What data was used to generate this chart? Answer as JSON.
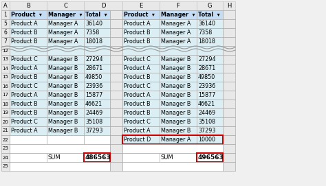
{
  "bg_color": "#f0f0f0",
  "header_bg": "#c5ddf4",
  "row_bg_light": "#daeef3",
  "row_bg_white": "#ffffff",
  "row_num_bg": "#e8e8e8",
  "border_color": "#a0a0a0",
  "red_box_color": "#cc0000",
  "text_color": "#000000",
  "left_sum": "486563",
  "right_sum": "496563",
  "top_data": [
    [
      "5",
      "Product A",
      "Manager A",
      "36140"
    ],
    [
      "6",
      "Product B",
      "Manager A",
      "7358"
    ],
    [
      "7",
      "Product B",
      "Manager A",
      "18018"
    ]
  ],
  "bot_data": [
    [
      "13",
      "Product C",
      "Manager B",
      "27294"
    ],
    [
      "14",
      "Product A",
      "Manager B",
      "28671"
    ],
    [
      "15",
      "Product B",
      "Manager B",
      "49850"
    ],
    [
      "16",
      "Product C",
      "Manager B",
      "23936"
    ],
    [
      "17",
      "Product A",
      "Manager B",
      "15877"
    ],
    [
      "18",
      "Product B",
      "Manager B",
      "46621"
    ],
    [
      "19",
      "Product B",
      "Manager B",
      "24469"
    ],
    [
      "20",
      "Product C",
      "Manager B",
      "35108"
    ],
    [
      "21",
      "Product A",
      "Manager B",
      "37293"
    ]
  ],
  "new_row": [
    "22",
    "Product D",
    "Manager A",
    "10000"
  ]
}
